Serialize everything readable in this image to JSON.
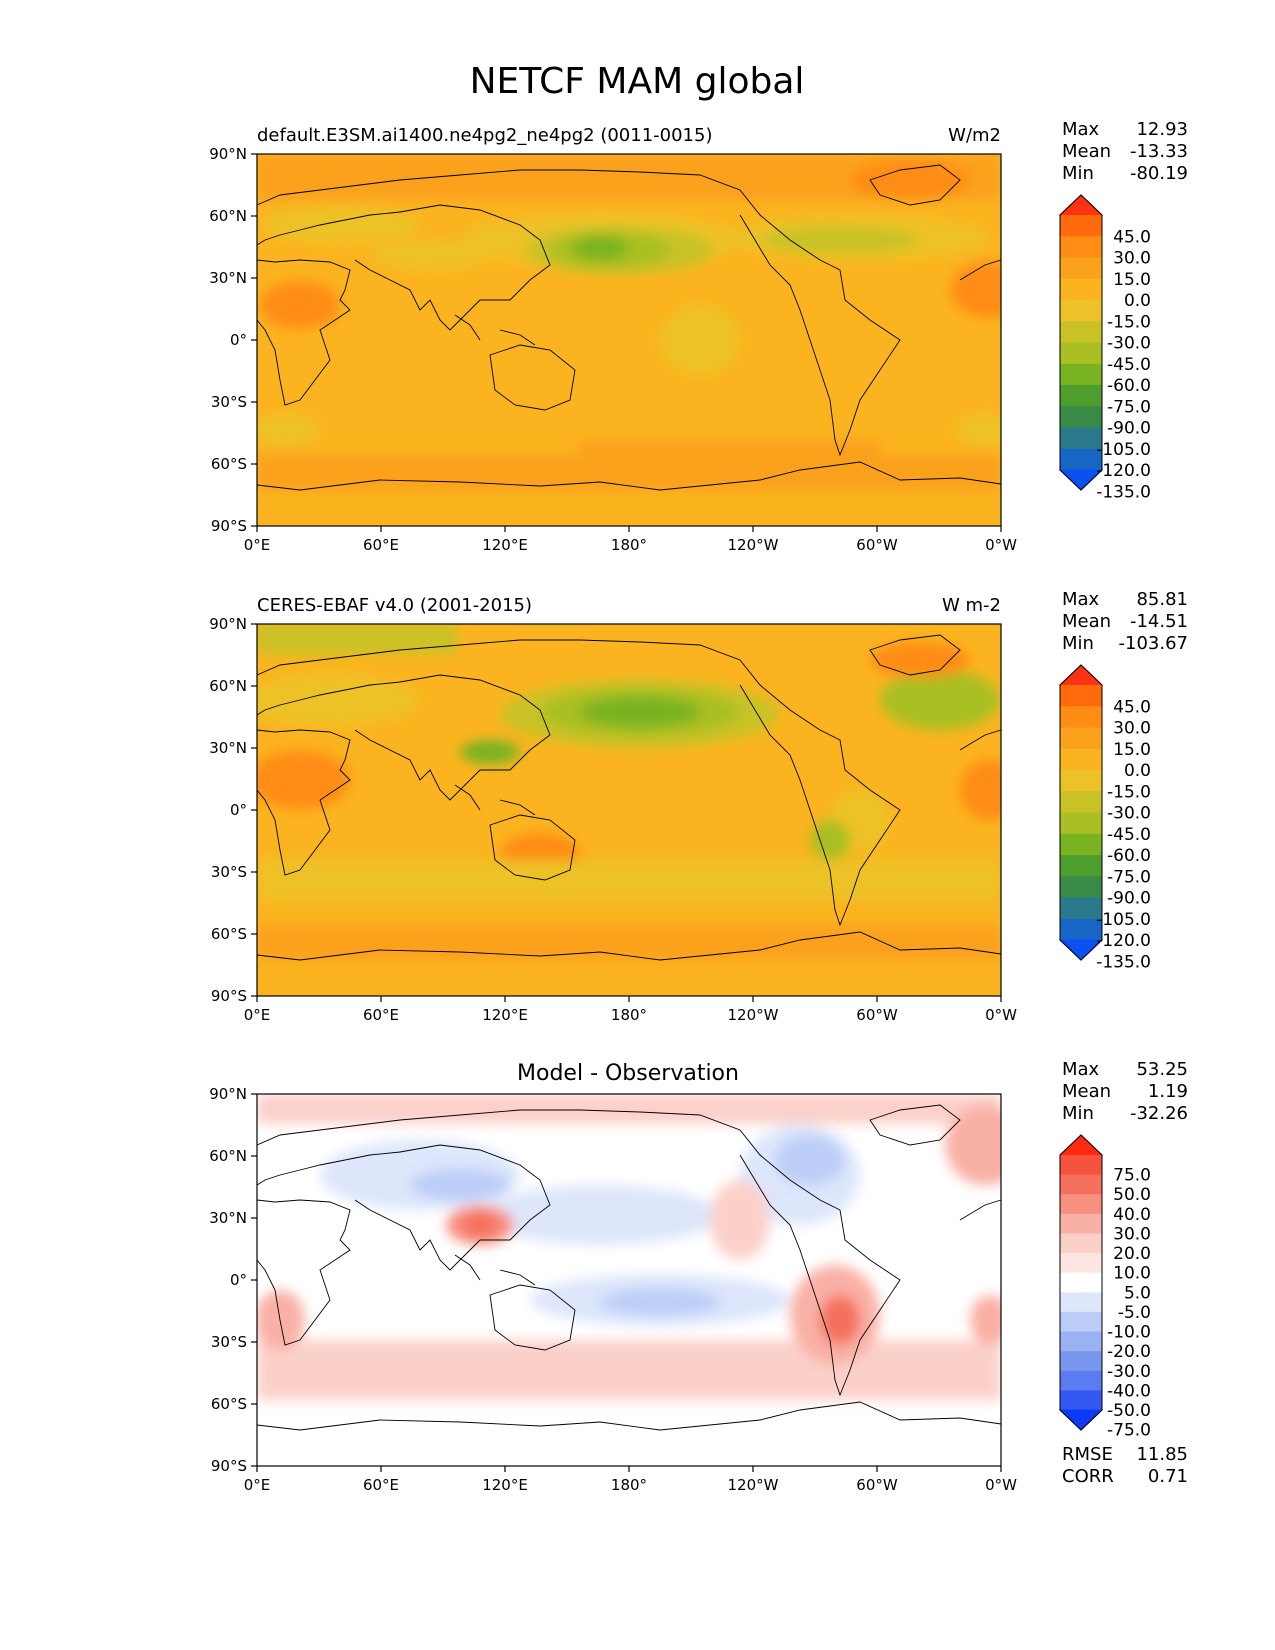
{
  "figure": {
    "title": "NETCF MAM global"
  },
  "chart_data": [
    {
      "type": "heatmap",
      "title_left": "default.E3SM.ai1400.ne4pg2_ne4pg2 (0011-0015)",
      "title_right": "W/m2",
      "xlim": [
        0,
        360
      ],
      "ylim": [
        -90,
        90
      ],
      "xticks": [
        "0°E",
        "60°E",
        "120°E",
        "180°",
        "120°W",
        "60°W",
        "0°W"
      ],
      "yticks": [
        "90°N",
        "60°N",
        "30°N",
        "0°",
        "30°S",
        "60°S",
        "90°S"
      ],
      "stats": {
        "Max": "12.93",
        "Mean": "-13.33",
        "Min": "-80.19"
      },
      "colorbar": {
        "levels": [
          "45.0",
          "30.0",
          "15.0",
          "0.0",
          "-15.0",
          "-30.0",
          "-45.0",
          "-60.0",
          "-75.0",
          "-90.0",
          "-105.0",
          "-120.0",
          "-135.0"
        ],
        "colors": [
          "#ff3311",
          "#ff6a0d",
          "#ff8c14",
          "#fba11c",
          "#fbb41f",
          "#edc228",
          "#c9c226",
          "#a9bf24",
          "#79b322",
          "#4e9e2e",
          "#3a8a48",
          "#2a7a8c",
          "#1866c4",
          "#0b50f0"
        ]
      }
    },
    {
      "type": "heatmap",
      "title_left": "CERES-EBAF v4.0 (2001-2015)",
      "title_right": "W m-2",
      "xlim": [
        0,
        360
      ],
      "ylim": [
        -90,
        90
      ],
      "xticks": [
        "0°E",
        "60°E",
        "120°E",
        "180°",
        "120°W",
        "60°W",
        "0°W"
      ],
      "yticks": [
        "90°N",
        "60°N",
        "30°N",
        "0°",
        "30°S",
        "60°S",
        "90°S"
      ],
      "stats": {
        "Max": "85.81",
        "Mean": "-14.51",
        "Min": "-103.67"
      },
      "colorbar": {
        "levels": [
          "45.0",
          "30.0",
          "15.0",
          "0.0",
          "-15.0",
          "-30.0",
          "-45.0",
          "-60.0",
          "-75.0",
          "-90.0",
          "-105.0",
          "-120.0",
          "-135.0"
        ],
        "colors": [
          "#ff3311",
          "#ff6a0d",
          "#ff8c14",
          "#fba11c",
          "#fbb41f",
          "#edc228",
          "#c9c226",
          "#a9bf24",
          "#79b322",
          "#4e9e2e",
          "#3a8a48",
          "#2a7a8c",
          "#1866c4",
          "#0b50f0"
        ]
      }
    },
    {
      "type": "heatmap",
      "title_center": "Model - Observation",
      "xlim": [
        0,
        360
      ],
      "ylim": [
        -90,
        90
      ],
      "xticks": [
        "0°E",
        "60°E",
        "120°E",
        "180°",
        "120°W",
        "60°W",
        "0°W"
      ],
      "yticks": [
        "90°N",
        "60°N",
        "30°N",
        "0°",
        "30°S",
        "60°S",
        "90°S"
      ],
      "stats": {
        "Max": "53.25",
        "Mean": "1.19",
        "Min": "-32.26"
      },
      "metrics": {
        "RMSE": "11.85",
        "CORR": "0.71"
      },
      "colorbar": {
        "levels": [
          "75.0",
          "50.0",
          "40.0",
          "30.0",
          "20.0",
          "10.0",
          "5.0",
          "-5.0",
          "-10.0",
          "-20.0",
          "-30.0",
          "-40.0",
          "-50.0",
          "-75.0"
        ],
        "colors": [
          "#ff2a10",
          "#f4533e",
          "#f4705c",
          "#f89080",
          "#f9b0a6",
          "#fbd0c9",
          "#fde6e2",
          "#ffffff",
          "#dde6fb",
          "#bccdf7",
          "#9ab1f2",
          "#7a97ef",
          "#5a7cf0",
          "#3358f3",
          "#0b3af9"
        ]
      }
    }
  ]
}
